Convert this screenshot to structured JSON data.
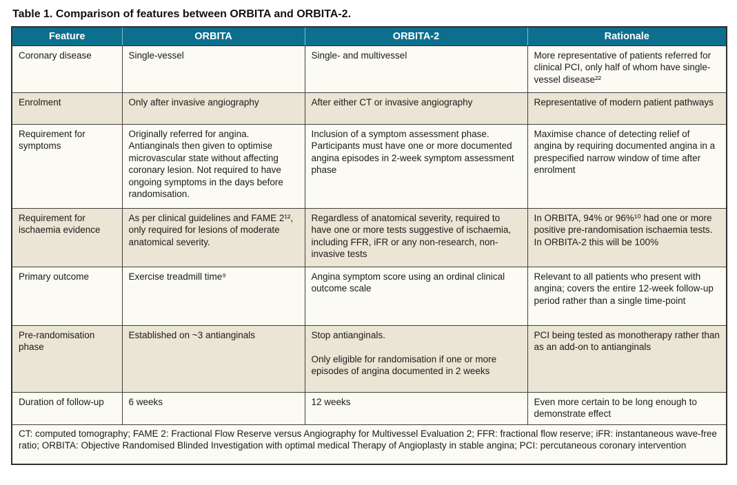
{
  "title": "Table 1. Comparison of features between ORBITA and ORBITA-2.",
  "colors": {
    "header_bg": "#0d6f8e",
    "header_divider": "#7fc0d4",
    "row_light": "#fbfaf3",
    "row_beige": "#eae5d4",
    "border": "#3f3f3f"
  },
  "table": {
    "headers": [
      "Feature",
      "ORBITA",
      "ORBITA-2",
      "Rationale"
    ],
    "rows": [
      {
        "feature": "Coronary disease",
        "orbita": "Single-vessel",
        "orbita2": "Single- and multivessel",
        "rationale": "More representative of patients referred for clinical PCI, only half of whom have single-vessel disease²²"
      },
      {
        "feature": "Enrolment",
        "orbita": "Only after invasive angiography",
        "orbita2": "After either CT or invasive angiography",
        "rationale": "Representative of modern patient pathways"
      },
      {
        "feature": "Requirement for symptoms",
        "orbita": "Originally referred for angina. Antianginals then given to optimise microvascular state without affecting coronary lesion. Not required to have ongoing symptoms in the days before randomisation.",
        "orbita2": "Inclusion of a symptom assessment phase. Participants must have one or more documented angina episodes in 2-week symptom assessment phase",
        "rationale": "Maximise chance of detecting relief of angina by requiring documented angina in a prespecified narrow window of time after enrolment"
      },
      {
        "feature": "Requirement for ischaemia evidence",
        "orbita": "As per clinical guidelines and FAME 2¹², only required for lesions of moderate anatomical severity.",
        "orbita2": "Regardless of anatomical severity, required to have one or more tests suggestive of ischaemia, including FFR, iFR or any non-research, non-invasive tests",
        "rationale": "In ORBITA, 94% or 96%¹⁰ had one or more positive pre-randomisation ischaemia tests. In ORBITA-2 this will be 100%"
      },
      {
        "feature": "Primary outcome",
        "orbita": "Exercise treadmill time⁹",
        "orbita2": "Angina symptom score using an ordinal clinical outcome scale",
        "rationale": "Relevant to all patients who present with angina; covers the entire 12-week follow-up period rather than a single time-point"
      },
      {
        "feature": "Pre-randomisation phase",
        "orbita": "Established on ~3 antianginals",
        "orbita2": "Stop antianginals.\n\nOnly eligible for randomisation if one or more episodes of angina documented in 2 weeks",
        "rationale": "PCI being tested as monotherapy rather than as an add-on to antianginals"
      },
      {
        "feature": "Duration of follow-up",
        "orbita": "6 weeks",
        "orbita2": "12 weeks",
        "rationale": "Even more certain to be long enough to demonstrate effect"
      }
    ],
    "footnote": "CT: computed tomography; FAME 2: Fractional Flow Reserve versus Angiography for Multivessel Evaluation 2; FFR: fractional flow reserve; iFR: instantaneous wave-free ratio; ORBITA: Objective Randomised Blinded Investigation with optimal medical Therapy of Angioplasty in stable angina; PCI: percutaneous coronary intervention"
  }
}
